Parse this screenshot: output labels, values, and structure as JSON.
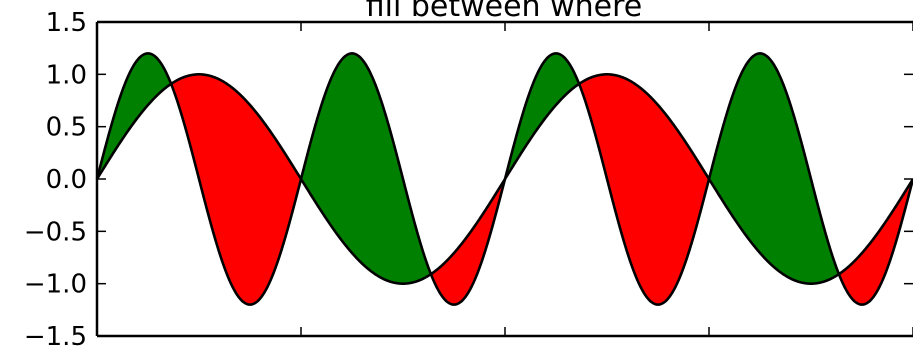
{
  "chart_data": {
    "type": "area",
    "title": "fill between where",
    "xlabel": "",
    "ylabel": "",
    "xlim": [
      0.0,
      2.0
    ],
    "ylim": [
      -1.5,
      1.5
    ],
    "x_ticks": [
      0.0,
      0.5,
      1.0,
      1.5,
      2.0
    ],
    "x_tick_labels": [],
    "y_ticks": [
      -1.5,
      -1.0,
      -0.5,
      0.0,
      0.5,
      1.0,
      1.5
    ],
    "y_tick_labels": [
      "−1.5",
      "−1.0",
      "−0.5",
      "0.0",
      "0.5",
      "1.0",
      "1.5"
    ],
    "grid": false,
    "series": [
      {
        "curve": "y1 = sin(2πx)",
        "x": [
          0.0,
          0.05,
          0.1,
          0.15,
          0.2,
          0.25,
          0.3,
          0.35,
          0.4,
          0.45,
          0.5,
          0.55,
          0.6,
          0.65,
          0.7,
          0.75,
          0.8,
          0.85,
          0.9,
          0.95,
          1.0,
          1.05,
          1.1,
          1.15,
          1.2,
          1.25,
          1.3,
          1.35,
          1.4,
          1.45,
          1.5,
          1.55,
          1.6,
          1.65,
          1.7,
          1.75,
          1.8,
          1.85,
          1.9,
          1.95,
          2.0
        ],
        "y": [
          0.0,
          0.31,
          0.59,
          0.81,
          0.95,
          1.0,
          0.95,
          0.81,
          0.59,
          0.31,
          0.0,
          -0.31,
          -0.59,
          -0.81,
          -0.95,
          -1.0,
          -0.95,
          -0.81,
          -0.59,
          -0.31,
          0.0,
          0.31,
          0.59,
          0.81,
          0.95,
          1.0,
          0.95,
          0.81,
          0.59,
          0.31,
          0.0,
          -0.31,
          -0.59,
          -0.81,
          -0.95,
          -1.0,
          -0.95,
          -0.81,
          -0.59,
          -0.31,
          0.0
        ]
      },
      {
        "curve": "y2 = 1.2·sin(4πx)",
        "x": [
          0.0,
          0.025,
          0.05,
          0.075,
          0.1,
          0.125,
          0.15,
          0.175,
          0.2,
          0.225,
          0.25,
          0.275,
          0.3,
          0.325,
          0.35,
          0.375,
          0.4,
          0.425,
          0.45,
          0.475,
          0.5
        ],
        "y": [
          0.0,
          0.37,
          0.71,
          0.97,
          1.14,
          1.2,
          1.14,
          0.97,
          0.71,
          0.37,
          0.0,
          -0.37,
          -0.71,
          -0.97,
          -1.14,
          -1.2,
          -1.14,
          -0.97,
          -0.71,
          -0.37,
          0.0
        ],
        "period": 0.5
      }
    ],
    "fills": [
      {
        "where": "y2 >= y1",
        "color": "#008000"
      },
      {
        "where": "y2 <= y1",
        "color": "#ff0000"
      }
    ],
    "line_color": "#000000"
  }
}
